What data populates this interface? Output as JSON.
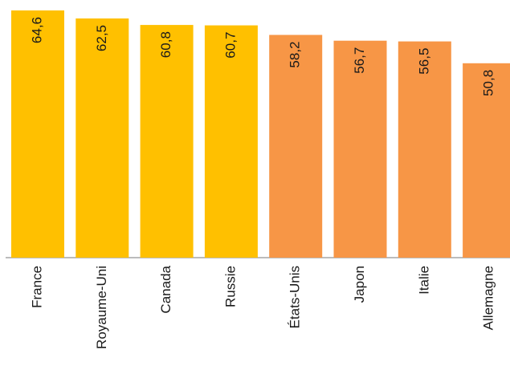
{
  "chart_data": {
    "type": "bar",
    "title": "",
    "xlabel": "",
    "ylabel": "",
    "categories": [
      "France",
      "Royaume-Uni",
      "Canada",
      "Russie",
      "États-Unis",
      "Japon",
      "Italie",
      "Allemagne"
    ],
    "values": [
      64.6,
      62.5,
      60.8,
      60.7,
      58.2,
      56.7,
      56.5,
      50.8
    ],
    "value_labels": [
      "64,6",
      "62,5",
      "60,8",
      "60,7",
      "58,2",
      "56,7",
      "56,5",
      "50,8"
    ],
    "bar_colors": [
      "#FFC000",
      "#FFC000",
      "#FFC000",
      "#FFC000",
      "#F79646",
      "#F79646",
      "#F79646",
      "#F79646"
    ],
    "ylim": [
      0,
      66
    ],
    "grid": false,
    "legend": "none",
    "axis_color": "#A6A6A6"
  }
}
